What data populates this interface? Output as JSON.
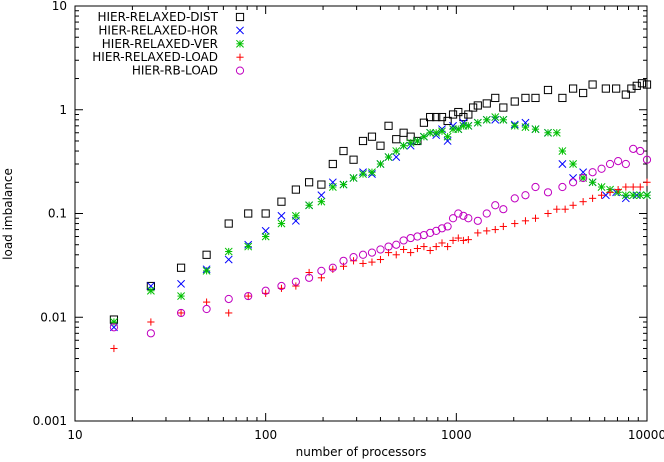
{
  "chart_data": {
    "type": "scatter",
    "xscale": "log",
    "yscale": "log",
    "xlim": [
      10,
      10000
    ],
    "ylim": [
      0.001,
      10
    ],
    "x_ticks": [
      10,
      100,
      1000,
      10000
    ],
    "x_tick_labels": [
      "10",
      "100",
      "1000",
      "10000"
    ],
    "y_ticks": [
      0.001,
      0.01,
      0.1,
      1,
      10
    ],
    "y_tick_labels": [
      "0.001",
      "0.01",
      "0.1",
      "1",
      "10"
    ],
    "xlabel": "number of processors",
    "ylabel": "load imbalance",
    "grid": false,
    "legend_position": "top-left",
    "series": [
      {
        "name": "HIER-RELAXED-DIST",
        "marker": "square",
        "color": "#000000",
        "points": [
          [
            16,
            0.0095
          ],
          [
            25,
            0.02
          ],
          [
            36,
            0.03
          ],
          [
            49,
            0.04
          ],
          [
            64,
            0.08
          ],
          [
            81,
            0.1
          ],
          [
            100,
            0.1
          ],
          [
            121,
            0.13
          ],
          [
            144,
            0.17
          ],
          [
            169,
            0.2
          ],
          [
            196,
            0.19
          ],
          [
            225,
            0.3
          ],
          [
            256,
            0.4
          ],
          [
            289,
            0.33
          ],
          [
            324,
            0.5
          ],
          [
            361,
            0.55
          ],
          [
            400,
            0.45
          ],
          [
            441,
            0.7
          ],
          [
            484,
            0.52
          ],
          [
            529,
            0.6
          ],
          [
            576,
            0.55
          ],
          [
            625,
            0.5
          ],
          [
            676,
            0.75
          ],
          [
            729,
            0.85
          ],
          [
            784,
            0.85
          ],
          [
            841,
            0.85
          ],
          [
            900,
            0.78
          ],
          [
            961,
            0.9
          ],
          [
            1024,
            0.95
          ],
          [
            1089,
            0.85
          ],
          [
            1156,
            0.9
          ],
          [
            1225,
            1.05
          ],
          [
            1296,
            1.1
          ],
          [
            1444,
            1.15
          ],
          [
            1600,
            1.3
          ],
          [
            1764,
            1.05
          ],
          [
            2025,
            1.2
          ],
          [
            2304,
            1.3
          ],
          [
            2601,
            1.3
          ],
          [
            3025,
            1.55
          ],
          [
            3600,
            1.3
          ],
          [
            4096,
            1.6
          ],
          [
            4624,
            1.45
          ],
          [
            5184,
            1.75
          ],
          [
            6084,
            1.6
          ],
          [
            6889,
            1.6
          ],
          [
            7744,
            1.4
          ],
          [
            8281,
            1.6
          ],
          [
            8836,
            1.7
          ],
          [
            9409,
            1.8
          ],
          [
            10000,
            1.75
          ]
        ]
      },
      {
        "name": "HIER-RELAXED-HOR",
        "marker": "x",
        "color": "#0000ff",
        "points": [
          [
            16,
            0.008
          ],
          [
            25,
            0.02
          ],
          [
            36,
            0.021
          ],
          [
            49,
            0.029
          ],
          [
            64,
            0.036
          ],
          [
            81,
            0.05
          ],
          [
            100,
            0.068
          ],
          [
            121,
            0.095
          ],
          [
            144,
            0.085
          ],
          [
            169,
            0.12
          ],
          [
            196,
            0.15
          ],
          [
            225,
            0.2
          ],
          [
            256,
            0.19
          ],
          [
            289,
            0.22
          ],
          [
            324,
            0.25
          ],
          [
            361,
            0.24
          ],
          [
            400,
            0.3
          ],
          [
            441,
            0.35
          ],
          [
            484,
            0.35
          ],
          [
            529,
            0.45
          ],
          [
            576,
            0.45
          ],
          [
            625,
            0.5
          ],
          [
            676,
            0.55
          ],
          [
            729,
            0.6
          ],
          [
            784,
            0.57
          ],
          [
            841,
            0.65
          ],
          [
            900,
            0.5
          ],
          [
            961,
            0.7
          ],
          [
            1024,
            0.65
          ],
          [
            1089,
            0.75
          ],
          [
            1156,
            0.7
          ],
          [
            1296,
            0.75
          ],
          [
            1444,
            0.8
          ],
          [
            1600,
            0.8
          ],
          [
            1764,
            0.8
          ],
          [
            2025,
            0.72
          ],
          [
            2304,
            0.75
          ],
          [
            2601,
            0.65
          ],
          [
            3025,
            0.6
          ],
          [
            3600,
            0.3
          ],
          [
            4096,
            0.22
          ],
          [
            4624,
            0.25
          ],
          [
            5184,
            0.2
          ],
          [
            6084,
            0.15
          ],
          [
            6889,
            0.16
          ],
          [
            7744,
            0.14
          ],
          [
            8836,
            0.15
          ],
          [
            10000,
            0.15
          ]
        ]
      },
      {
        "name": "HIER-RELAXED-VER",
        "marker": "asterisk",
        "color": "#00c000",
        "points": [
          [
            16,
            0.009
          ],
          [
            25,
            0.018
          ],
          [
            36,
            0.016
          ],
          [
            49,
            0.028
          ],
          [
            64,
            0.043
          ],
          [
            81,
            0.048
          ],
          [
            100,
            0.06
          ],
          [
            121,
            0.08
          ],
          [
            144,
            0.095
          ],
          [
            169,
            0.12
          ],
          [
            196,
            0.13
          ],
          [
            225,
            0.18
          ],
          [
            256,
            0.19
          ],
          [
            289,
            0.22
          ],
          [
            324,
            0.24
          ],
          [
            361,
            0.25
          ],
          [
            400,
            0.3
          ],
          [
            441,
            0.35
          ],
          [
            484,
            0.4
          ],
          [
            529,
            0.45
          ],
          [
            576,
            0.48
          ],
          [
            625,
            0.5
          ],
          [
            676,
            0.55
          ],
          [
            729,
            0.6
          ],
          [
            784,
            0.6
          ],
          [
            841,
            0.62
          ],
          [
            900,
            0.55
          ],
          [
            961,
            0.65
          ],
          [
            1024,
            0.65
          ],
          [
            1089,
            0.7
          ],
          [
            1156,
            0.7
          ],
          [
            1296,
            0.75
          ],
          [
            1444,
            0.8
          ],
          [
            1600,
            0.85
          ],
          [
            1764,
            0.8
          ],
          [
            2025,
            0.7
          ],
          [
            2304,
            0.68
          ],
          [
            2601,
            0.65
          ],
          [
            3025,
            0.6
          ],
          [
            3364,
            0.6
          ],
          [
            3600,
            0.4
          ],
          [
            4096,
            0.3
          ],
          [
            4624,
            0.22
          ],
          [
            5184,
            0.2
          ],
          [
            5776,
            0.18
          ],
          [
            6400,
            0.17
          ],
          [
            7056,
            0.16
          ],
          [
            7744,
            0.15
          ],
          [
            8464,
            0.15
          ],
          [
            9216,
            0.15
          ],
          [
            10000,
            0.15
          ]
        ]
      },
      {
        "name": "HIER-RELAXED-LOAD",
        "marker": "plus",
        "color": "#ff0000",
        "points": [
          [
            16,
            0.005
          ],
          [
            25,
            0.009
          ],
          [
            36,
            0.011
          ],
          [
            49,
            0.014
          ],
          [
            64,
            0.011
          ],
          [
            81,
            0.016
          ],
          [
            100,
            0.017
          ],
          [
            121,
            0.019
          ],
          [
            144,
            0.02
          ],
          [
            169,
            0.027
          ],
          [
            196,
            0.024
          ],
          [
            225,
            0.029
          ],
          [
            256,
            0.031
          ],
          [
            289,
            0.035
          ],
          [
            324,
            0.033
          ],
          [
            361,
            0.034
          ],
          [
            400,
            0.036
          ],
          [
            441,
            0.042
          ],
          [
            484,
            0.04
          ],
          [
            529,
            0.045
          ],
          [
            576,
            0.042
          ],
          [
            625,
            0.046
          ],
          [
            676,
            0.048
          ],
          [
            729,
            0.044
          ],
          [
            784,
            0.048
          ],
          [
            841,
            0.052
          ],
          [
            900,
            0.048
          ],
          [
            961,
            0.055
          ],
          [
            1024,
            0.058
          ],
          [
            1089,
            0.055
          ],
          [
            1156,
            0.056
          ],
          [
            1296,
            0.065
          ],
          [
            1444,
            0.068
          ],
          [
            1600,
            0.07
          ],
          [
            1764,
            0.075
          ],
          [
            2025,
            0.08
          ],
          [
            2304,
            0.085
          ],
          [
            2601,
            0.09
          ],
          [
            3025,
            0.1
          ],
          [
            3364,
            0.11
          ],
          [
            3721,
            0.11
          ],
          [
            4096,
            0.12
          ],
          [
            4624,
            0.13
          ],
          [
            5184,
            0.14
          ],
          [
            5776,
            0.15
          ],
          [
            6400,
            0.16
          ],
          [
            7056,
            0.17
          ],
          [
            7744,
            0.18
          ],
          [
            8464,
            0.18
          ],
          [
            9216,
            0.18
          ],
          [
            10000,
            0.2
          ]
        ]
      },
      {
        "name": "HIER-RB-LOAD",
        "marker": "circle",
        "color": "#c000c0",
        "points": [
          [
            16,
            0.008
          ],
          [
            25,
            0.007
          ],
          [
            36,
            0.011
          ],
          [
            49,
            0.012
          ],
          [
            64,
            0.015
          ],
          [
            81,
            0.016
          ],
          [
            100,
            0.018
          ],
          [
            121,
            0.02
          ],
          [
            144,
            0.022
          ],
          [
            169,
            0.024
          ],
          [
            196,
            0.028
          ],
          [
            225,
            0.03
          ],
          [
            256,
            0.035
          ],
          [
            289,
            0.038
          ],
          [
            324,
            0.04
          ],
          [
            361,
            0.042
          ],
          [
            400,
            0.045
          ],
          [
            441,
            0.048
          ],
          [
            484,
            0.05
          ],
          [
            529,
            0.055
          ],
          [
            576,
            0.058
          ],
          [
            625,
            0.06
          ],
          [
            676,
            0.062
          ],
          [
            729,
            0.065
          ],
          [
            784,
            0.068
          ],
          [
            841,
            0.072
          ],
          [
            900,
            0.075
          ],
          [
            961,
            0.09
          ],
          [
            1024,
            0.1
          ],
          [
            1089,
            0.095
          ],
          [
            1156,
            0.09
          ],
          [
            1296,
            0.085
          ],
          [
            1444,
            0.1
          ],
          [
            1600,
            0.12
          ],
          [
            1764,
            0.11
          ],
          [
            2025,
            0.14
          ],
          [
            2304,
            0.15
          ],
          [
            2601,
            0.18
          ],
          [
            3025,
            0.16
          ],
          [
            3600,
            0.18
          ],
          [
            4096,
            0.2
          ],
          [
            4624,
            0.22
          ],
          [
            5184,
            0.25
          ],
          [
            5776,
            0.27
          ],
          [
            6400,
            0.3
          ],
          [
            7056,
            0.32
          ],
          [
            7744,
            0.3
          ],
          [
            8464,
            0.42
          ],
          [
            9216,
            0.4
          ],
          [
            10000,
            0.33
          ]
        ]
      }
    ]
  }
}
